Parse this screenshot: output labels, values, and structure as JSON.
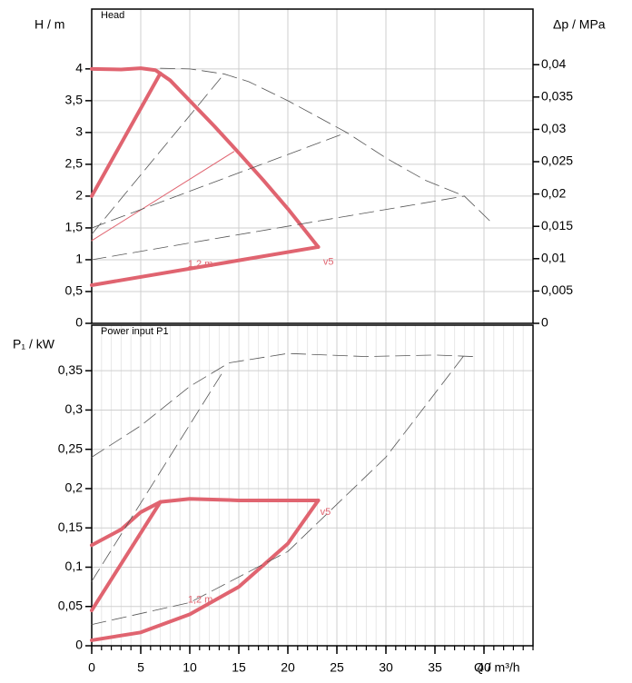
{
  "chart_data": [
    {
      "type": "line",
      "title": "Head",
      "ylabel": "H / m",
      "y2label": "Δp / MPa",
      "xlim": [
        0,
        45
      ],
      "xticks": [
        0,
        5,
        10,
        15,
        20,
        25,
        30,
        35,
        40
      ],
      "ylim": [
        0,
        4.94
      ],
      "yticks": [
        0,
        {
          "value": 0.5,
          "label": "0,5"
        },
        1,
        {
          "value": 1.5,
          "label": "1,5"
        },
        2,
        {
          "value": 2.5,
          "label": "2,5"
        },
        3,
        {
          "value": 3.5,
          "label": "3,5"
        },
        4
      ],
      "y2lim": [
        0,
        0.0486
      ],
      "y2ticks": [
        0,
        {
          "value": 0.005,
          "label": "0,005"
        },
        {
          "value": 0.01,
          "label": "0,01"
        },
        {
          "value": 0.015,
          "label": "0,015"
        },
        {
          "value": 0.02,
          "label": "0,02"
        },
        {
          "value": 0.025,
          "label": "0,025"
        },
        {
          "value": 0.03,
          "label": "0,03"
        },
        {
          "value": 0.035,
          "label": "0,035"
        },
        {
          "value": 0.04,
          "label": "0,04"
        }
      ],
      "grid": true,
      "series": [
        {
          "color": "#e06470",
          "width": 4,
          "dashed": false,
          "x": [
            0,
            3,
            5,
            6.5,
            8,
            10,
            12.5,
            15,
            17.5,
            20,
            23.1
          ],
          "values": [
            4.0,
            3.99,
            4.01,
            3.98,
            3.82,
            3.5,
            3.1,
            2.68,
            2.25,
            1.8,
            1.2
          ]
        },
        {
          "color": "#e06470",
          "width": 4,
          "dashed": false,
          "x": [
            0,
            7
          ],
          "values": [
            2.0,
            3.93
          ]
        },
        {
          "color": "#e06470",
          "width": 4,
          "dashed": false,
          "x": [
            0,
            23.1
          ],
          "values": [
            0.6,
            1.2
          ]
        },
        {
          "color": "#e06470",
          "width": 1,
          "dashed": false,
          "x": [
            0,
            14.5
          ],
          "values": [
            1.3,
            2.7
          ]
        },
        {
          "color": "#555555",
          "width": 0.8,
          "dashed": true,
          "x": [
            7,
            10,
            13.5,
            16,
            20,
            26,
            30,
            34,
            38,
            41
          ],
          "values": [
            4.01,
            4.0,
            3.92,
            3.8,
            3.5,
            3.0,
            2.6,
            2.25,
            2.0,
            1.55
          ]
        },
        {
          "color": "#555555",
          "width": 0.8,
          "dashed": true,
          "x": [
            0,
            13.5
          ],
          "values": [
            1.4,
            3.92
          ]
        },
        {
          "color": "#555555",
          "width": 0.8,
          "dashed": true,
          "x": [
            0,
            26
          ],
          "values": [
            1.5,
            3.0
          ]
        },
        {
          "color": "#555555",
          "width": 0.8,
          "dashed": true,
          "x": [
            0,
            38
          ],
          "values": [
            1.0,
            2.0
          ]
        }
      ],
      "annotations": [
        {
          "text": "1,2 m",
          "x": 9.8,
          "y": 0.93,
          "color": "#e06470"
        },
        {
          "text": "v5",
          "x": 23.6,
          "y": 0.96,
          "color": "#e06470"
        }
      ]
    },
    {
      "type": "line",
      "title": "Power input P1",
      "ylabel": "P₁ / kW",
      "xlabel": "Q / m³/h",
      "xlim": [
        0,
        45
      ],
      "xticks": [
        0,
        5,
        10,
        15,
        20,
        25,
        30,
        35,
        40
      ],
      "xminorticks": [
        0,
        1,
        2,
        3,
        4,
        5,
        6,
        7,
        8,
        9,
        10,
        11,
        12,
        13,
        14,
        15,
        16,
        17,
        18,
        19,
        20,
        21,
        22,
        23,
        24,
        25,
        26,
        27,
        28,
        29,
        30,
        31,
        32,
        33,
        34,
        35,
        36,
        37,
        38,
        39,
        40,
        41,
        42,
        43,
        44,
        45
      ],
      "ylim": [
        0,
        0.408
      ],
      "yticks": [
        0,
        {
          "value": 0.05,
          "label": "0,05"
        },
        {
          "value": 0.1,
          "label": "0,1"
        },
        {
          "value": 0.15,
          "label": "0,15"
        },
        {
          "value": 0.2,
          "label": "0,2"
        },
        {
          "value": 0.25,
          "label": "0,25"
        },
        {
          "value": 0.3,
          "label": "0,3"
        },
        {
          "value": 0.35,
          "label": "0,35"
        }
      ],
      "grid": true,
      "series": [
        {
          "color": "#e06470",
          "width": 4,
          "dashed": false,
          "x": [
            0,
            3,
            5,
            7,
            10,
            15,
            20,
            23.1
          ],
          "values": [
            0.128,
            0.148,
            0.17,
            0.183,
            0.187,
            0.185,
            0.185,
            0.185
          ]
        },
        {
          "color": "#e06470",
          "width": 4,
          "dashed": false,
          "x": [
            0,
            7
          ],
          "values": [
            0.045,
            0.183
          ]
        },
        {
          "color": "#e06470",
          "width": 4,
          "dashed": false,
          "x": [
            0,
            5,
            10,
            15,
            20,
            23.1
          ],
          "values": [
            0.007,
            0.017,
            0.04,
            0.075,
            0.13,
            0.185
          ]
        },
        {
          "color": "#555555",
          "width": 0.8,
          "dashed": true,
          "x": [
            0,
            5,
            10,
            14,
            20,
            28,
            35,
            39
          ],
          "values": [
            0.24,
            0.28,
            0.33,
            0.36,
            0.372,
            0.368,
            0.37,
            0.368
          ]
        },
        {
          "color": "#555555",
          "width": 0.8,
          "dashed": true,
          "x": [
            0,
            13.5
          ],
          "values": [
            0.082,
            0.351
          ]
        },
        {
          "color": "#555555",
          "width": 0.8,
          "dashed": true,
          "x": [
            0,
            10,
            20,
            30,
            38
          ],
          "values": [
            0.027,
            0.055,
            0.12,
            0.24,
            0.37
          ]
        }
      ],
      "annotations": [
        {
          "text": "1,2 m",
          "x": 9.8,
          "y": 0.058,
          "color": "#e06470"
        },
        {
          "text": "v5",
          "x": 23.3,
          "y": 0.17,
          "color": "#e06470"
        }
      ]
    }
  ]
}
